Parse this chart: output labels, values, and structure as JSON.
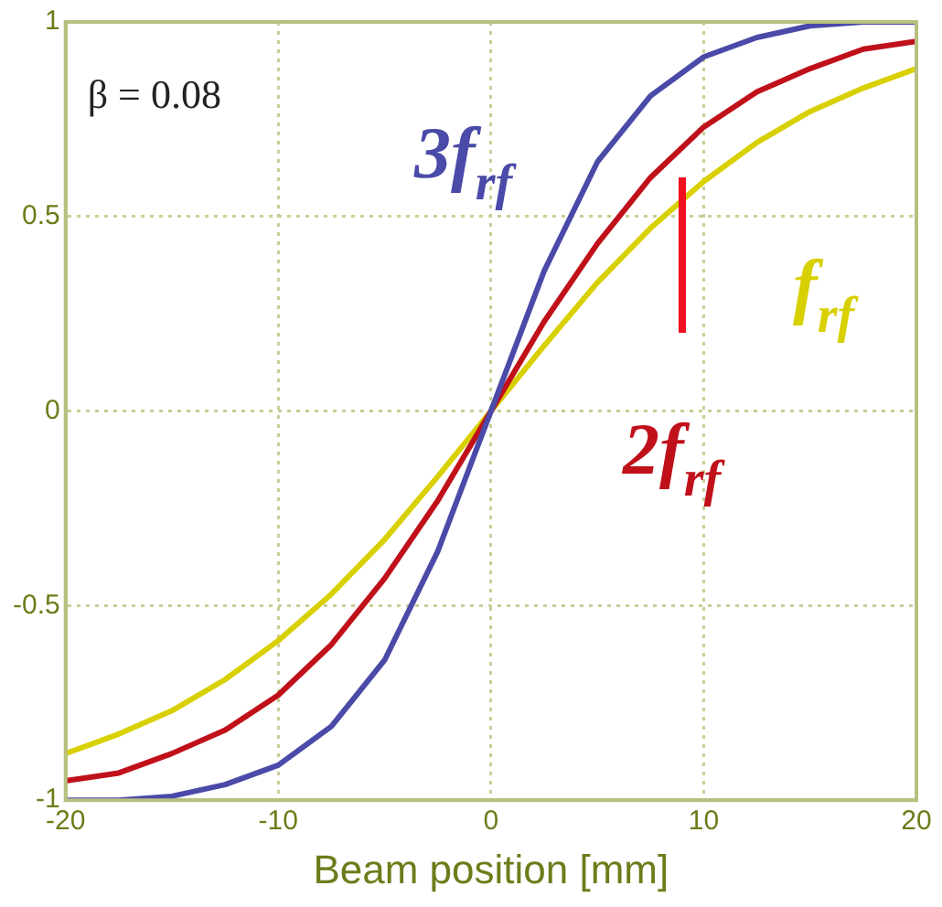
{
  "chart_data": {
    "type": "line",
    "xlabel": "Beam position [mm]",
    "x": [
      -20,
      -17.5,
      -15,
      -12.5,
      -10,
      -7.5,
      -5,
      -2.5,
      0,
      2.5,
      5,
      7.5,
      10,
      12.5,
      15,
      17.5,
      20
    ],
    "series": [
      {
        "name": "3f$_{rf}$",
        "color": "#4a4aa8",
        "values": [
          -1,
          -1,
          -0.99,
          -0.96,
          -0.91,
          -0.81,
          -0.64,
          -0.36,
          0,
          0.36,
          0.64,
          0.81,
          0.91,
          0.96,
          0.99,
          1,
          1
        ]
      },
      {
        "name": "2f$_{rf}$",
        "color": "#c0101a",
        "values": [
          -0.95,
          -0.93,
          -0.88,
          -0.82,
          -0.73,
          -0.6,
          -0.43,
          -0.23,
          0,
          0.23,
          0.43,
          0.6,
          0.73,
          0.82,
          0.88,
          0.93,
          0.95
        ]
      },
      {
        "name": "f$_{rf}$",
        "color": "#d8d000",
        "values": [
          -0.88,
          -0.83,
          -0.77,
          -0.69,
          -0.59,
          -0.47,
          -0.33,
          -0.168,
          0,
          0.168,
          0.33,
          0.47,
          0.59,
          0.69,
          0.77,
          0.83,
          0.88
        ]
      }
    ],
    "xlim": [
      -20,
      20
    ],
    "xticks": [
      -20,
      -10,
      0,
      10,
      20
    ],
    "ylim": [
      -1,
      1
    ],
    "yticks": [
      -1,
      -0.5,
      0,
      0.5,
      1
    ],
    "grid": true,
    "legend": false,
    "marker": "none",
    "line_style": "solid",
    "annotations": [
      "β = 0.08"
    ]
  }
}
